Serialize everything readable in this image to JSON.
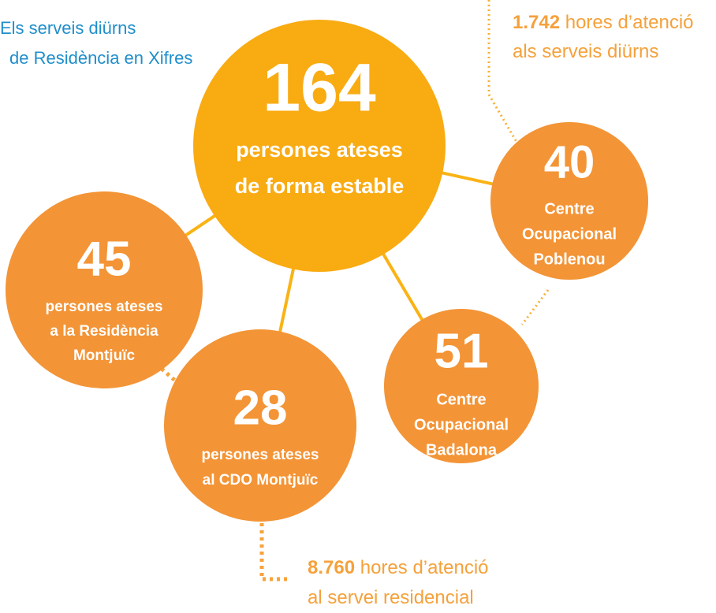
{
  "header": {
    "lines": [
      "Els serveis diürns",
      "de Residència en Xifres"
    ]
  },
  "center": {
    "number": "164",
    "lines": [
      "persones ateses",
      "de forma estable"
    ]
  },
  "nodes": [
    {
      "number": "40",
      "lines": [
        "Centre",
        "Ocupacional",
        "Poblenou"
      ]
    },
    {
      "number": "45",
      "lines": [
        "persones ateses",
        "a la Residència",
        "Montjuïc"
      ]
    },
    {
      "number": "28",
      "lines": [
        "persones ateses",
        "al CDO Montjuïc"
      ]
    },
    {
      "number": "51",
      "lines": [
        "Centre",
        "Ocupacional",
        "Badalona"
      ]
    }
  ],
  "annotations": [
    {
      "number": "1.742",
      "lines": [
        "hores d’atenció",
        "als serveis diürns"
      ]
    },
    {
      "number": "8.760",
      "lines": [
        "hores d’atenció",
        "al servei residencial"
      ]
    }
  ]
}
